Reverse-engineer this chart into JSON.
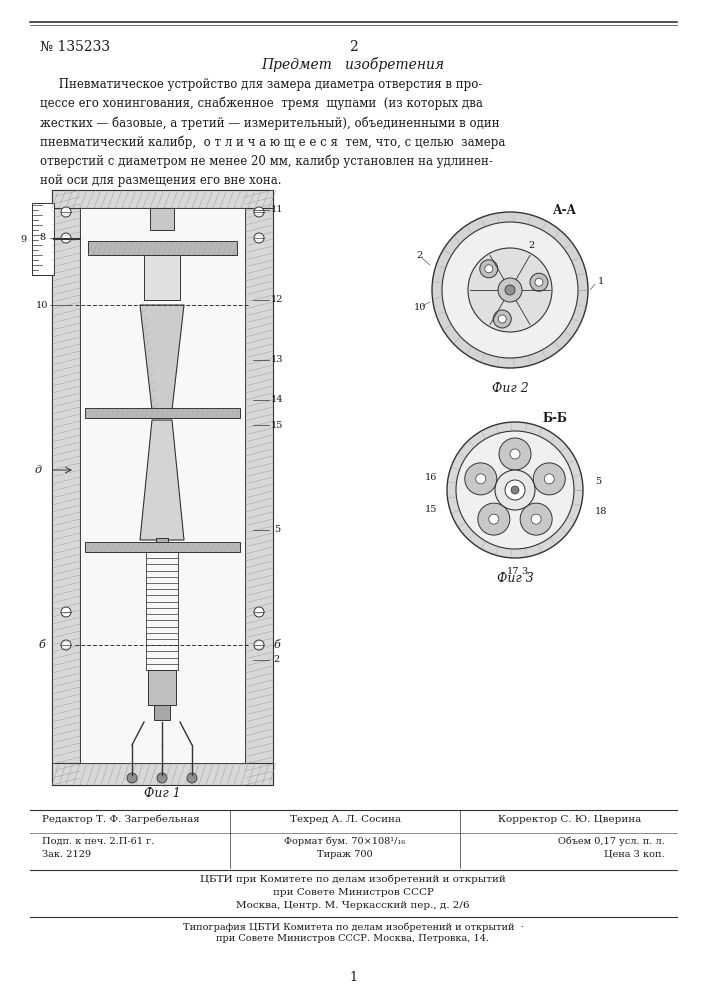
{
  "page_number_left": "№ 135233",
  "page_number_center": "2",
  "section_title": "Предмет   изобретения",
  "fig1_label": "Фиг 1",
  "fig2_label": "Фиг 2",
  "fig3_label": "Фиг 3",
  "fig_A_label": "А-А",
  "fig_B_label": "Б-Б",
  "footer_line1_col1": "Редактор Т. Ф. Загребельная",
  "footer_line1_col2": "Техред А. Л. Сосина",
  "footer_line1_col3": "Корректор С. Ю. Цверина",
  "footer_line2_col1": "Подп. к печ. 2.П-61 г.",
  "footer_line2_col2": "Формат бум. 70×108¹/₁₆",
  "footer_line2_col3": "Объем 0,17 усл. п. л.",
  "footer_line3_col1": "Зак. 2129",
  "footer_line3_col2": "Тираж 700",
  "footer_line3_col3": "Цена 3 коп.",
  "footer_cbti1": "ЦБТИ при Комитете по делам изобретений и открытий",
  "footer_cbti2": "при Совете Министров СССР",
  "footer_cbti3": "Москва, Центр. М. Черкасский пер., д. 2/6",
  "footer_typo1": "Типография ЦБТИ Комитета по делам изобретений и открытий  ·",
  "footer_typo2": "при Совете Министров СССР. Москва, Петровка, 14.",
  "page_bottom": "1",
  "bg_color": "#ffffff",
  "text_color": "#1a1a1a",
  "line_color": "#333333"
}
